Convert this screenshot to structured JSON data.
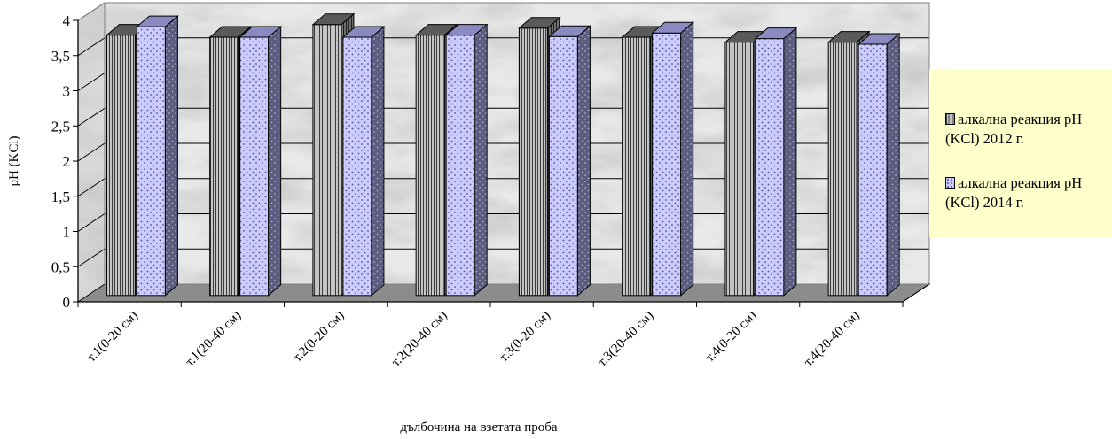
{
  "chart_data": {
    "type": "bar",
    "categories": [
      "т.1(0-20 см)",
      "т.1(20-40 см)",
      "т.2(0-20 см)",
      "т.2(20-40 см)",
      "т.3(0-20 см)",
      "т.3(20-40 см)",
      "т.4(0-20 см)",
      "т.4(20-40 см)"
    ],
    "series": [
      {
        "name": "алкална реакция pH (KCl) 2012 г.",
        "values": [
          3.7,
          3.67,
          3.85,
          3.7,
          3.8,
          3.67,
          3.6,
          3.6
        ],
        "color": "#a6a6a6",
        "pattern": "vertical-lines"
      },
      {
        "name": "алкална реакция pH (KCl) 2014 г.",
        "values": [
          3.82,
          3.67,
          3.67,
          3.7,
          3.68,
          3.73,
          3.65,
          3.57
        ],
        "color": "#ccccff",
        "pattern": "dots"
      }
    ],
    "yticks": [
      "0",
      "0,5",
      "1",
      "1,5",
      "2",
      "2,5",
      "3",
      "3,5",
      "4"
    ],
    "xlabel": "дълбочина на взетата проба",
    "ylabel": "pH (KCl)",
    "ylim": [
      0,
      4
    ],
    "grid": true,
    "legend": "right",
    "legend_color": "#ffffcc"
  }
}
